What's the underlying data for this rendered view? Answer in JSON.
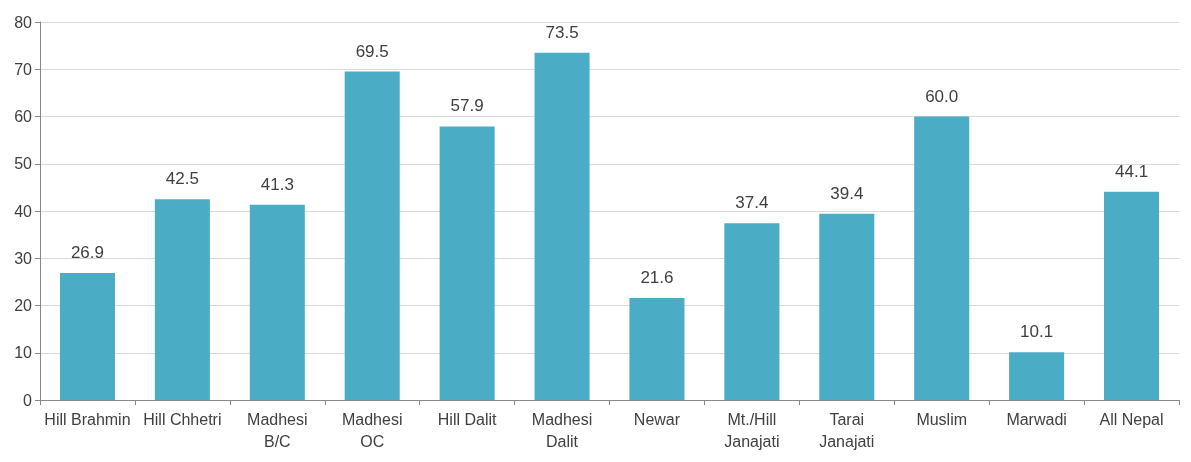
{
  "chart_data": {
    "type": "bar",
    "categories": [
      "Hill Brahmin",
      "Hill Chhetri",
      "Madhesi\nB/C",
      "Madhesi\nOC",
      "Hill Dalit",
      "Madhesi\nDalit",
      "Newar",
      "Mt./Hill\nJanajati",
      "Tarai\nJanajati",
      "Muslim",
      "Marwadi",
      "All Nepal"
    ],
    "values": [
      26.9,
      42.5,
      41.3,
      69.5,
      57.9,
      73.5,
      21.6,
      37.4,
      39.4,
      60.0,
      10.1,
      44.1
    ],
    "value_labels": [
      "26.9",
      "42.5",
      "41.3",
      "69.5",
      "57.9",
      "73.5",
      "21.6",
      "37.4",
      "39.4",
      "60.0",
      "10.1",
      "44.1"
    ],
    "color": "#4bacc6",
    "ylim": [
      0,
      80
    ],
    "yticks": [
      0,
      10,
      20,
      30,
      40,
      50,
      60,
      70,
      80
    ],
    "grid": "y"
  }
}
